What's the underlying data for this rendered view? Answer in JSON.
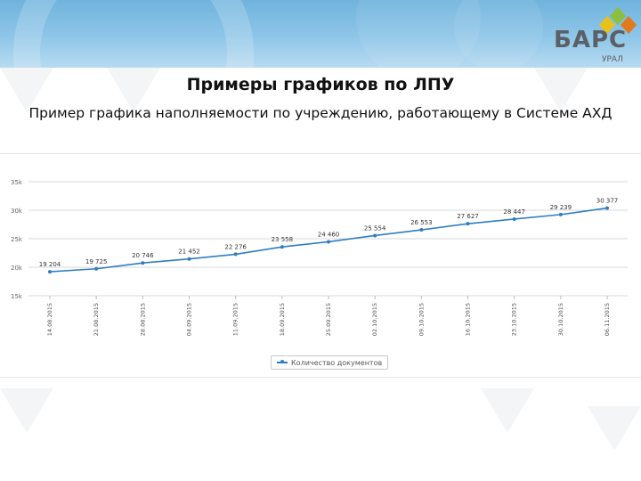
{
  "header": {
    "logo_text": "БАРС",
    "logo_sub": "УРАЛ",
    "logo_icon": "bars-diamonds-icon",
    "colors": {
      "banner": "#7dbde4",
      "logo_yellow": "#e8c21a",
      "logo_green": "#8cbf3f",
      "logo_orange": "#e07a1c"
    }
  },
  "title": "Примеры графиков по ЛПУ",
  "subtitle": "Пример графика наполняемости по учреждению, работающему в Системе АХД",
  "chart_data": {
    "type": "line",
    "title": "",
    "xlabel": "",
    "ylabel": "",
    "ylim": [
      15000,
      35000
    ],
    "yticks": [
      {
        "value": 35000,
        "label": "35k"
      },
      {
        "value": 30000,
        "label": "30k"
      },
      {
        "value": 25000,
        "label": "25k"
      },
      {
        "value": 20000,
        "label": "20k"
      },
      {
        "value": 15000,
        "label": "15k"
      }
    ],
    "categories": [
      "14.08.2015",
      "21.08.2015",
      "28.08.2015",
      "04.09.2015",
      "11.09.2015",
      "18.09.2015",
      "25.09.2015",
      "02.10.2015",
      "09.10.2015",
      "16.10.2015",
      "23.10.2015",
      "30.10.2015",
      "06.11.2015"
    ],
    "series": [
      {
        "name": "Количество документов",
        "color": "#2f7ebf",
        "values": [
          19204,
          19725,
          20746,
          21452,
          22276,
          23558,
          24460,
          25554,
          26553,
          27627,
          28447,
          29239,
          30377
        ],
        "labels": [
          "19 204",
          "19 725",
          "20 746",
          "21 452",
          "22 276",
          "23 558",
          "24 460",
          "25 554",
          "26 553",
          "27 627",
          "28 447",
          "29 239",
          "30 377"
        ]
      }
    ],
    "grid": true,
    "legend": "bottom"
  }
}
